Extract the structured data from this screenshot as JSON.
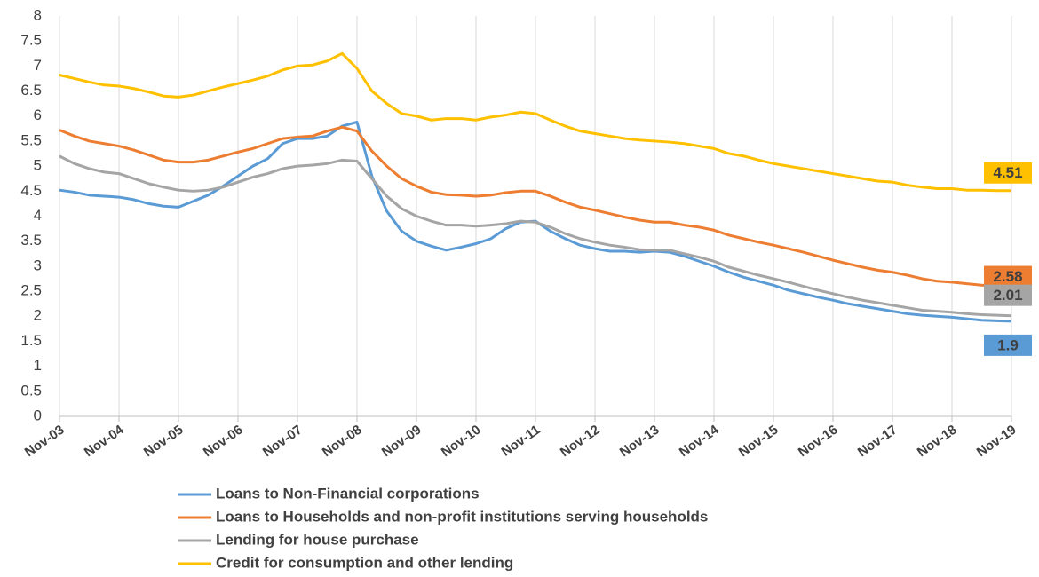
{
  "chart_data": {
    "type": "line",
    "categories": [
      "Nov-03",
      null,
      null,
      null,
      "Nov-04",
      null,
      null,
      null,
      "Nov-05",
      null,
      null,
      null,
      "Nov-06",
      null,
      null,
      null,
      "Nov-07",
      null,
      null,
      null,
      "Nov-08",
      null,
      null,
      null,
      "Nov-09",
      null,
      null,
      null,
      "Nov-10",
      null,
      null,
      null,
      "Nov-11",
      null,
      null,
      null,
      "Nov-12",
      null,
      null,
      null,
      "Nov-13",
      null,
      null,
      null,
      "Nov-14",
      null,
      null,
      null,
      "Nov-15",
      null,
      null,
      null,
      "Nov-16",
      null,
      null,
      null,
      "Nov-17",
      null,
      null,
      null,
      "Nov-18",
      null,
      null,
      null,
      "Nov-19"
    ],
    "series": [
      {
        "name": "Loans to Non-Financial corporations",
        "color": "#5b9bd5",
        "values": [
          4.52,
          4.48,
          4.42,
          4.4,
          4.38,
          4.33,
          4.25,
          4.2,
          4.18,
          4.3,
          4.42,
          4.6,
          4.8,
          5.0,
          5.15,
          5.45,
          5.55,
          5.55,
          5.6,
          5.8,
          5.88,
          4.8,
          4.1,
          3.7,
          3.5,
          3.4,
          3.32,
          3.38,
          3.45,
          3.55,
          3.75,
          3.88,
          3.9,
          3.7,
          3.55,
          3.42,
          3.35,
          3.3,
          3.3,
          3.28,
          3.3,
          3.28,
          3.2,
          3.1,
          3.0,
          2.88,
          2.78,
          2.7,
          2.62,
          2.52,
          2.45,
          2.38,
          2.32,
          2.25,
          2.2,
          2.15,
          2.1,
          2.05,
          2.02,
          2.0,
          1.98,
          1.95,
          1.92,
          1.91,
          1.9
        ]
      },
      {
        "name": "Loans to Households and non-profit institutions serving households",
        "color": "#ed7d31",
        "values": [
          5.72,
          5.6,
          5.5,
          5.45,
          5.4,
          5.32,
          5.22,
          5.12,
          5.08,
          5.08,
          5.12,
          5.2,
          5.28,
          5.35,
          5.45,
          5.55,
          5.58,
          5.6,
          5.7,
          5.78,
          5.7,
          5.3,
          5.0,
          4.75,
          4.6,
          4.48,
          4.43,
          4.42,
          4.4,
          4.42,
          4.47,
          4.5,
          4.5,
          4.4,
          4.28,
          4.18,
          4.12,
          4.05,
          3.98,
          3.92,
          3.88,
          3.88,
          3.82,
          3.78,
          3.72,
          3.62,
          3.55,
          3.48,
          3.42,
          3.35,
          3.28,
          3.2,
          3.12,
          3.05,
          2.98,
          2.92,
          2.88,
          2.82,
          2.75,
          2.7,
          2.68,
          2.65,
          2.62,
          2.6,
          2.58
        ]
      },
      {
        "name": "Lending for house purchase",
        "color": "#a5a5a5",
        "values": [
          5.2,
          5.05,
          4.95,
          4.88,
          4.85,
          4.75,
          4.65,
          4.58,
          4.52,
          4.5,
          4.52,
          4.58,
          4.68,
          4.78,
          4.85,
          4.95,
          5.0,
          5.02,
          5.05,
          5.12,
          5.1,
          4.75,
          4.4,
          4.15,
          4.0,
          3.9,
          3.82,
          3.82,
          3.8,
          3.82,
          3.85,
          3.9,
          3.88,
          3.78,
          3.65,
          3.55,
          3.48,
          3.42,
          3.38,
          3.33,
          3.32,
          3.32,
          3.25,
          3.18,
          3.1,
          2.98,
          2.9,
          2.82,
          2.75,
          2.68,
          2.6,
          2.52,
          2.45,
          2.38,
          2.32,
          2.27,
          2.22,
          2.17,
          2.12,
          2.1,
          2.08,
          2.05,
          2.03,
          2.02,
          2.01
        ]
      },
      {
        "name": "Credit for consumption and other lending",
        "color": "#ffc000",
        "values": [
          6.82,
          6.75,
          6.68,
          6.62,
          6.6,
          6.55,
          6.48,
          6.4,
          6.38,
          6.42,
          6.5,
          6.58,
          6.65,
          6.72,
          6.8,
          6.92,
          7.0,
          7.02,
          7.1,
          7.25,
          6.95,
          6.5,
          6.25,
          6.05,
          6.0,
          5.92,
          5.95,
          5.95,
          5.92,
          5.98,
          6.02,
          6.08,
          6.05,
          5.92,
          5.8,
          5.7,
          5.65,
          5.6,
          5.55,
          5.52,
          5.5,
          5.48,
          5.45,
          5.4,
          5.35,
          5.25,
          5.2,
          5.12,
          5.05,
          5.0,
          4.95,
          4.9,
          4.85,
          4.8,
          4.75,
          4.7,
          4.68,
          4.62,
          4.58,
          4.55,
          4.55,
          4.52,
          4.52,
          4.51,
          4.51
        ]
      }
    ],
    "ylim": [
      0,
      8
    ],
    "yticks": [
      0,
      0.5,
      1,
      1.5,
      2,
      2.5,
      3,
      3.5,
      4,
      4.5,
      5,
      5.5,
      6,
      6.5,
      7,
      7.5,
      8
    ],
    "grid": "x",
    "legend": "bottom"
  }
}
